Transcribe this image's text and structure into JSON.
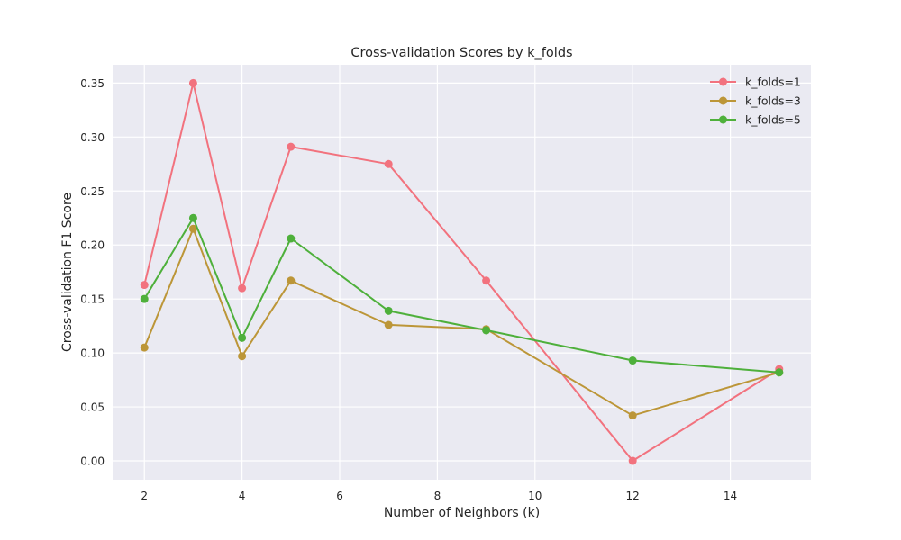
{
  "chart_data": {
    "type": "line",
    "title": "Cross-validation Scores by k_folds",
    "xlabel": "Number of Neighbors (k)",
    "ylabel": "Cross-validation F1 Score",
    "x": [
      2,
      3,
      4,
      5,
      7,
      9,
      12,
      15
    ],
    "xlim": [
      1.35,
      15.65
    ],
    "ylim": [
      -0.0175,
      0.367
    ],
    "xticks": [
      2,
      4,
      6,
      8,
      10,
      12,
      14
    ],
    "yticks": [
      0.0,
      0.05,
      0.1,
      0.15,
      0.2,
      0.25,
      0.3,
      0.35
    ],
    "ytick_labels": [
      "0.00",
      "0.05",
      "0.10",
      "0.15",
      "0.20",
      "0.25",
      "0.30",
      "0.35"
    ],
    "grid": true,
    "legend_position": "top-right",
    "series": [
      {
        "name": "k_folds=1",
        "color": "#f2727e",
        "values": [
          0.163,
          0.35,
          0.16,
          0.291,
          0.275,
          0.167,
          0.0,
          0.085
        ]
      },
      {
        "name": "k_folds=3",
        "color": "#bc9638",
        "values": [
          0.105,
          0.215,
          0.097,
          0.167,
          0.126,
          0.122,
          0.042,
          0.082
        ]
      },
      {
        "name": "k_folds=5",
        "color": "#4eb03b",
        "values": [
          0.15,
          0.225,
          0.114,
          0.206,
          0.139,
          0.121,
          0.093,
          0.082
        ]
      }
    ]
  }
}
